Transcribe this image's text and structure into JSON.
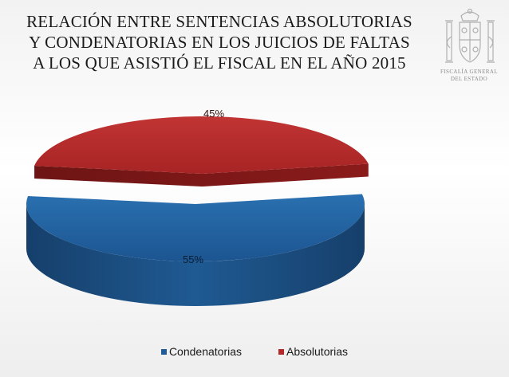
{
  "title_lines": [
    "RELACIÓN ENTRE SENTENCIAS ABSOLUTORIAS",
    "Y CONDENATORIAS EN LOS JUICIOS  DE FALTAS",
    "A LOS QUE ASISTIÓ EL FISCAL EN EL AÑO 2015"
  ],
  "emblem": {
    "caption_lines": [
      "FISCALÍA GENERAL",
      "DEL ESTADO"
    ],
    "icon": "spanish-coat-of-arms"
  },
  "chart_data": {
    "type": "pie",
    "style": "3d-exploded",
    "title": "RELACIÓN ENTRE SENTENCIAS ABSOLUTORIAS Y CONDENATORIAS EN LOS JUICIOS  DE FALTAS A LOS QUE ASISTIÓ EL FISCAL EN EL AÑO 2015",
    "categories": [
      "Condenatorias",
      "Absolutorias"
    ],
    "values": [
      55,
      45
    ],
    "data_labels": [
      "55%",
      "45%"
    ],
    "colors": [
      "#1f5c99",
      "#b32828"
    ],
    "legend_position": "bottom"
  }
}
